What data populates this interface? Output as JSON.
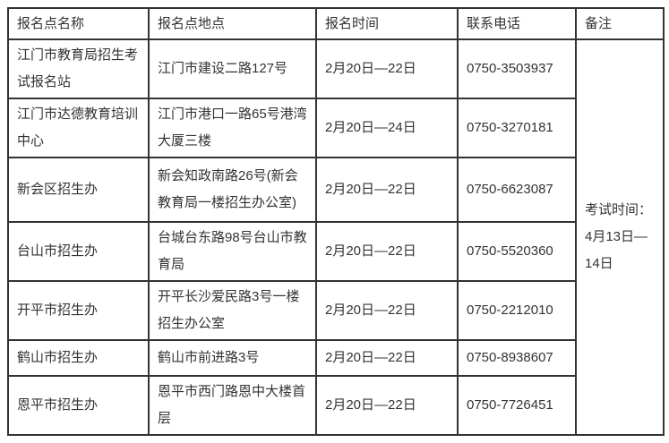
{
  "table": {
    "headers": {
      "site_name": "报名点名称",
      "site_address": "报名点地点",
      "time": "报名时间",
      "phone": "联系电话",
      "remark": "备注"
    },
    "rows": [
      {
        "name": "江门市教育局招生考试报名站",
        "address": "江门市建设二路127号",
        "time": "2月20日—22日",
        "phone": "0750-3503937"
      },
      {
        "name": "江门市达德教育培训中心",
        "address": "江门市港口一路65号港湾大厦三楼",
        "time": "2月20日—24日",
        "phone": "0750-3270181"
      },
      {
        "name": "新会区招生办",
        "address": "新会知政南路26号(新会教育局一楼招生办公室)",
        "time": "2月20日—22日",
        "phone": "0750-6623087"
      },
      {
        "name": "台山市招生办",
        "address": "台城台东路98号台山市教育局",
        "time": "2月20日—22日",
        "phone": "0750-5520360"
      },
      {
        "name": "开平市招生办",
        "address": "开平长沙爱民路3号一楼招生办公室",
        "time": "2月20日—22日",
        "phone": "0750-2212010"
      },
      {
        "name": "鹤山市招生办",
        "address": "鹤山市前进路3号",
        "time": "2月20日—22日",
        "phone": "0750-8938607"
      },
      {
        "name": "恩平市招生办",
        "address": "恩平市西门路恩中大楼首层",
        "time": "2月20日—22日",
        "phone": "0750-7726451"
      }
    ],
    "remark": "考试时间：4月13日—14日",
    "colors": {
      "text": "#333333",
      "border": "#333333",
      "background": "#ffffff"
    }
  }
}
